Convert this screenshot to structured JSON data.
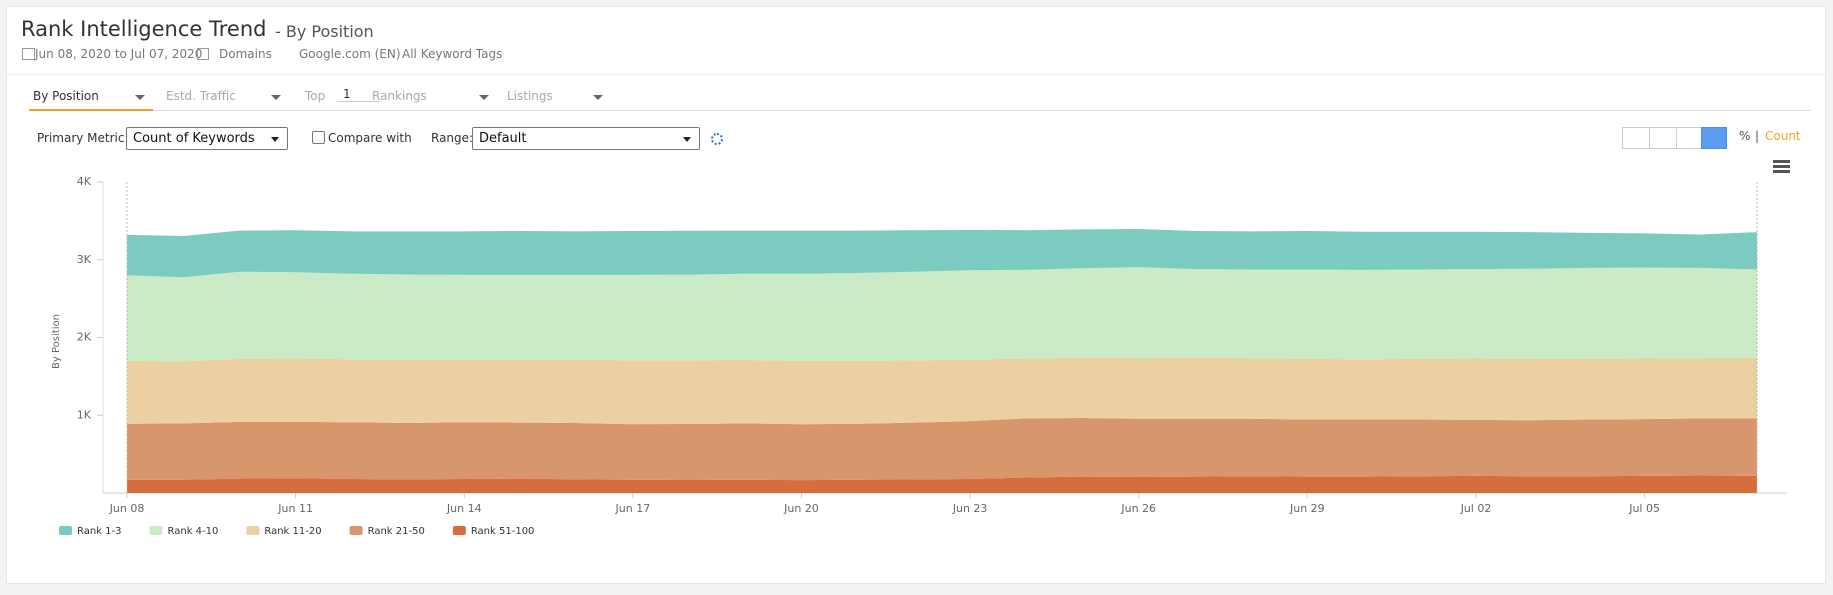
{
  "header": {
    "title": "Rank Intelligence Trend",
    "subtitle": "- By Position",
    "date_range": "Jun 08, 2020 to Jul 07, 2020",
    "domains": "Domains",
    "engine": "Google.com (EN)",
    "tags": "All Keyword Tags"
  },
  "tabs": {
    "by_position": "By Position",
    "traffic": "Estd. Traffic",
    "top_label": "Top",
    "top_value": "1",
    "rankings": "Rankings",
    "listings": "Listings"
  },
  "controls": {
    "primary_metric_label": "Primary Metric:",
    "primary_metric": "Count of Keywords",
    "compare": "Compare with",
    "range_label": "Range:",
    "range": "Default",
    "percent": "%",
    "separator": "|",
    "count": "Count"
  },
  "chart_data": {
    "type": "stacked_area",
    "y_label": "By Position",
    "categories": [
      "Jun 08",
      null,
      null,
      "Jun 11",
      null,
      null,
      "Jun 14",
      null,
      null,
      "Jun 17",
      null,
      null,
      "Jun 20",
      null,
      null,
      "Jun 23",
      null,
      null,
      "Jun 26",
      null,
      null,
      "Jun 29",
      null,
      null,
      "Jul 02",
      null,
      null,
      "Jul 05",
      null,
      null
    ],
    "ylim": [
      0,
      4000
    ],
    "yticks": [
      {
        "value": 1000,
        "label": "1K"
      },
      {
        "value": 2000,
        "label": "2K"
      },
      {
        "value": 3000,
        "label": "3K"
      },
      {
        "value": 4000,
        "label": "4K"
      }
    ],
    "series": [
      {
        "name": "Rank 51-100",
        "color": "#d66d3e",
        "values": [
          170,
          170,
          185,
          190,
          180,
          175,
          180,
          185,
          175,
          170,
          168,
          170,
          165,
          170,
          175,
          180,
          200,
          210,
          205,
          210,
          215,
          210,
          210,
          215,
          220,
          215,
          215,
          220,
          225,
          220
        ]
      },
      {
        "name": "Rank 21-50",
        "color": "#d8966c",
        "values": [
          720,
          725,
          730,
          725,
          730,
          725,
          730,
          720,
          725,
          715,
          720,
          725,
          720,
          720,
          730,
          745,
          760,
          755,
          750,
          745,
          740,
          735,
          735,
          730,
          720,
          720,
          730,
          730,
          735,
          740
        ]
      },
      {
        "name": "Rank 11-20",
        "color": "#ebd1a1",
        "values": [
          810,
          800,
          810,
          815,
          810,
          810,
          805,
          810,
          815,
          820,
          820,
          815,
          815,
          810,
          800,
          790,
          770,
          775,
          780,
          785,
          780,
          780,
          775,
          780,
          790,
          790,
          780,
          780,
          775,
          775
        ]
      },
      {
        "name": "Rank 4-10",
        "color": "#cbeac6",
        "values": [
          1100,
          1080,
          1120,
          1110,
          1100,
          1100,
          1090,
          1090,
          1090,
          1100,
          1100,
          1110,
          1120,
          1130,
          1140,
          1150,
          1140,
          1150,
          1170,
          1140,
          1140,
          1150,
          1150,
          1150,
          1150,
          1160,
          1170,
          1170,
          1160,
          1140
        ]
      },
      {
        "name": "Rank 1-3",
        "color": "#7ccbc1",
        "values": [
          520,
          530,
          530,
          540,
          545,
          555,
          560,
          565,
          560,
          565,
          565,
          555,
          555,
          545,
          535,
          520,
          510,
          500,
          490,
          490,
          490,
          495,
          490,
          485,
          480,
          470,
          450,
          440,
          430,
          480
        ]
      }
    ],
    "legend_order": [
      4,
      3,
      2,
      1,
      0
    ]
  }
}
